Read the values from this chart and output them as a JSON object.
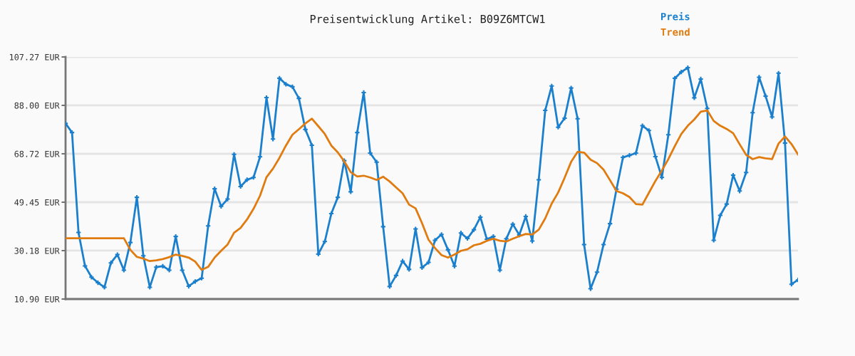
{
  "chart_data": {
    "type": "line",
    "title": "Preisentwicklung Artikel: B09Z6MTCW1",
    "categories": [
      null,
      null,
      null,
      null,
      null,
      null,
      null,
      null,
      null,
      null,
      null,
      null,
      null,
      null,
      null,
      null,
      null,
      null,
      null,
      null,
      null,
      null,
      null,
      null,
      null,
      null,
      null,
      null,
      null,
      null,
      null,
      null,
      null,
      null,
      null,
      null,
      null,
      null,
      null,
      null,
      null,
      null,
      null,
      null,
      null,
      null,
      null,
      null,
      null,
      null,
      null,
      null,
      null,
      null,
      null,
      null,
      null,
      null,
      null,
      null,
      null,
      null,
      null,
      null,
      null,
      null,
      null,
      null,
      null,
      null,
      null,
      null,
      null,
      null,
      null,
      null,
      null,
      null,
      null,
      null,
      null,
      null,
      null,
      null,
      null,
      null,
      null,
      null,
      null,
      null,
      null,
      null,
      null,
      null,
      null,
      null,
      null,
      null,
      null,
      null,
      null,
      null,
      null,
      null,
      null,
      null,
      null,
      null,
      null,
      null,
      null,
      null,
      null,
      null
    ],
    "series": [
      {
        "name": "Preis",
        "color": "#1a7fcc",
        "marker": "cross",
        "values": [
          80.8,
          77.2,
          37.4,
          24.1,
          19.6,
          17.4,
          15.6,
          25.3,
          28.6,
          22.4,
          33.4,
          51.4,
          28.1,
          15.6,
          23.6,
          24.0,
          22.4,
          35.8,
          22.4,
          16.0,
          17.9,
          19.2,
          40.0,
          54.8,
          47.8,
          50.7,
          68.5,
          55.7,
          58.4,
          59.3,
          67.5,
          91.1,
          74.6,
          98.8,
          96.4,
          95.4,
          90.8,
          78.4,
          72.1,
          28.8,
          33.8,
          44.9,
          51.4,
          66.0,
          53.6,
          77.2,
          93.1,
          69.0,
          65.4,
          39.7,
          15.9,
          20.3,
          26.0,
          22.7,
          38.8,
          23.4,
          25.5,
          34.3,
          36.6,
          30.5,
          24.0,
          37.2,
          35.0,
          38.5,
          43.5,
          34.7,
          35.8,
          22.4,
          34.9,
          40.7,
          36.4,
          43.8,
          34.0,
          58.4,
          86.0,
          95.7,
          79.3,
          82.9,
          94.9,
          82.7,
          32.6,
          15.0,
          21.6,
          32.6,
          40.9,
          54.6,
          67.3,
          68.1,
          69.0,
          79.9,
          78.0,
          67.6,
          59.3,
          76.3,
          98.8,
          101.3,
          103.0,
          91.0,
          98.5,
          86.8,
          34.3,
          44.2,
          48.7,
          60.2,
          53.9,
          61.3,
          85.1,
          99.2,
          91.7,
          83.4,
          100.8,
          73.0,
          16.8,
          18.5
        ]
      },
      {
        "name": "Trend",
        "color": "#e07b10",
        "marker": "none",
        "values": [
          35.1,
          35.1,
          35.1,
          35.1,
          35.1,
          35.1,
          35.1,
          35.1,
          35.1,
          35.1,
          30.5,
          27.7,
          27.0,
          26.0,
          26.3,
          26.8,
          27.6,
          28.6,
          28.1,
          27.4,
          25.8,
          22.5,
          23.7,
          27.4,
          30.1,
          32.6,
          37.3,
          39.2,
          42.6,
          46.8,
          52.0,
          59.4,
          62.8,
          67.1,
          72.0,
          76.3,
          78.5,
          80.8,
          82.7,
          79.7,
          76.6,
          72.0,
          69.3,
          65.7,
          61.4,
          59.7,
          60.0,
          59.3,
          58.3,
          59.6,
          57.7,
          55.3,
          53.0,
          48.5,
          47.0,
          41.1,
          34.5,
          31.2,
          28.4,
          27.4,
          28.6,
          30.1,
          30.7,
          32.3,
          32.9,
          34.1,
          34.9,
          34.1,
          33.8,
          34.9,
          35.9,
          36.8,
          36.6,
          38.5,
          43.0,
          48.9,
          53.3,
          59.2,
          65.5,
          69.5,
          69.2,
          66.4,
          65.0,
          62.4,
          58.2,
          53.9,
          53.0,
          51.5,
          48.7,
          48.5,
          53.2,
          57.9,
          62.1,
          66.6,
          71.8,
          76.6,
          79.9,
          82.4,
          85.5,
          86.0,
          81.8,
          79.9,
          78.6,
          76.9,
          72.5,
          68.3,
          66.6,
          67.4,
          66.9,
          66.6,
          72.8,
          75.6,
          72.6,
          68.5
        ]
      }
    ],
    "ylim": [
      10.9,
      107.27
    ],
    "yticks": [
      {
        "value": 10.9,
        "label": "10.90 EUR"
      },
      {
        "value": 30.18,
        "label": "30.18 EUR"
      },
      {
        "value": 49.45,
        "label": "49.45 EUR"
      },
      {
        "value": 68.72,
        "label": "68.72 EUR"
      },
      {
        "value": 88.0,
        "label": "88.00 EUR"
      },
      {
        "value": 107.27,
        "label": "107.27 EUR"
      }
    ],
    "grid": "y",
    "legend": "top right",
    "tick_labels": "y",
    "line_style": "solid"
  }
}
